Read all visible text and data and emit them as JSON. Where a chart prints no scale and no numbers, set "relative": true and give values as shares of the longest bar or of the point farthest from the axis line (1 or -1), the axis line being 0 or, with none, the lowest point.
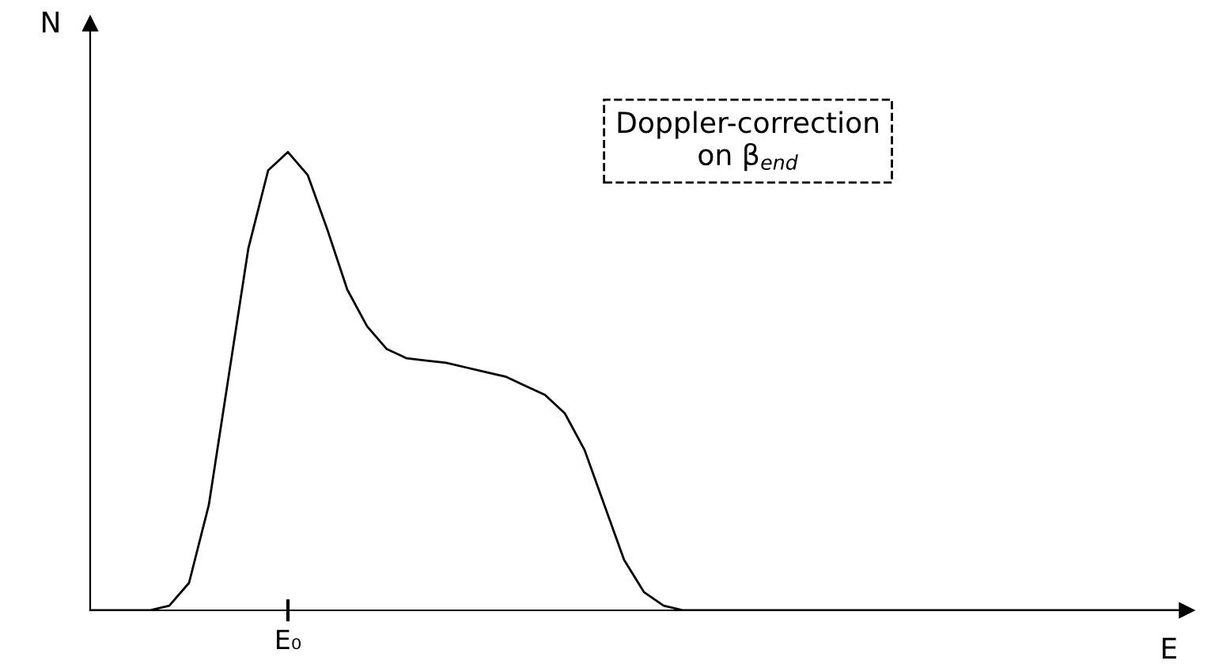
{
  "chart_data": {
    "type": "line",
    "relative": true,
    "xlabel": "E",
    "ylabel": "N",
    "categories": [
      null,
      null,
      null,
      null,
      null,
      null,
      null,
      null,
      null,
      null,
      null,
      null,
      null,
      null,
      null,
      null,
      null,
      null,
      null,
      null,
      null,
      null,
      null,
      null,
      null,
      null,
      null,
      null,
      null,
      null,
      null,
      null,
      null,
      null,
      null,
      null,
      null,
      null,
      null,
      null,
      null,
      null,
      null,
      null,
      null,
      null,
      null,
      null,
      null,
      null,
      null,
      null,
      null,
      null,
      null,
      null
    ],
    "series": [
      {
        "color": "#000000",
        "values": [
          0,
          0,
          0,
          0,
          0.01,
          0.06,
          0.23,
          0.51,
          0.79,
          0.96,
          1,
          0.95,
          0.83,
          0.7,
          0.62,
          0.57,
          0.55,
          0.545,
          0.54,
          0.53,
          0.52,
          0.51,
          0.49,
          0.47,
          0.43,
          0.35,
          0.23,
          0.11,
          0.04,
          0.01,
          0,
          0,
          0,
          0,
          0,
          0,
          0,
          0,
          0,
          0,
          0,
          0,
          0,
          0,
          0,
          0,
          0,
          0,
          0,
          0,
          0,
          0,
          0,
          0,
          0,
          0
        ]
      }
    ],
    "annotations": [
      "E₀",
      "Doppler-correction\non β$_{end}$"
    ],
    "grid": false,
    "legend": false
  }
}
